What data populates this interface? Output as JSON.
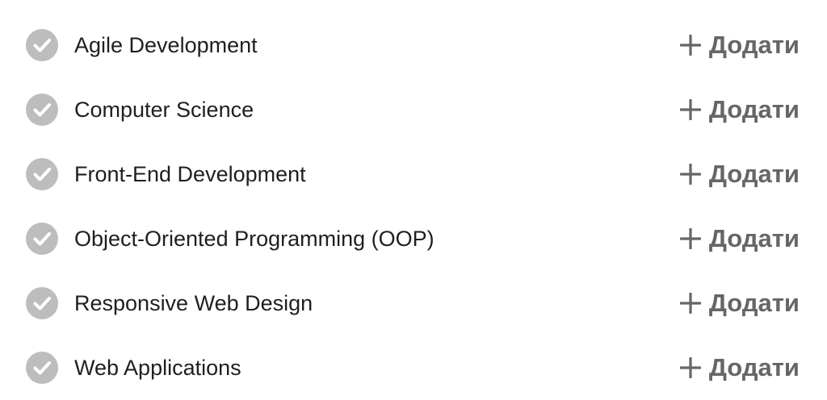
{
  "colors": {
    "check_icon_bg": "#bdbdbd",
    "check_icon_mark": "#ffffff",
    "text": "#1f1f1f",
    "action": "#666666"
  },
  "icons": {
    "status": "check-circle-icon",
    "add": "plus-icon"
  },
  "skills": [
    {
      "name": "Agile Development",
      "action_label": "Додати"
    },
    {
      "name": "Computer Science",
      "action_label": "Додати"
    },
    {
      "name": "Front-End Development",
      "action_label": "Додати"
    },
    {
      "name": "Object-Oriented Programming (OOP)",
      "action_label": "Додати"
    },
    {
      "name": "Responsive Web Design",
      "action_label": "Додати"
    },
    {
      "name": "Web Applications",
      "action_label": "Додати"
    }
  ]
}
